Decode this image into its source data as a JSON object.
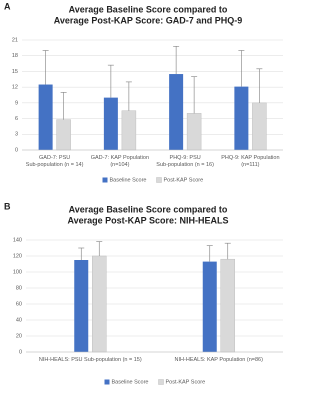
{
  "chart_data": [
    {
      "type": "bar",
      "panel_label": "A",
      "title": [
        "Average Baseline Score compared to",
        "Average Post-KAP Score: GAD-7 and PHQ-9"
      ],
      "categories": [
        "GAD-7: PSU Sub-population (n = 14)",
        "GAD-7: KAP Population (n=104)",
        "PHQ-9: PSU Sub-population (n = 16)",
        "PHQ-9: KAP Population (n=111)"
      ],
      "series": [
        {
          "name": "Baseline Score",
          "color": "#4472c4",
          "values": [
            12.5,
            10,
            14.5,
            12.1
          ],
          "errors": [
            6.5,
            6.2,
            5.3,
            6.9
          ]
        },
        {
          "name": "Post-KAP Score",
          "color": "#d9d9d9",
          "values": [
            5.8,
            7.5,
            7,
            9
          ],
          "errors": [
            5.2,
            5.5,
            7,
            6.5
          ]
        }
      ],
      "ylim": [
        0,
        21
      ],
      "yticks": [
        0,
        3,
        6,
        9,
        12,
        15,
        18,
        21
      ],
      "grid": true,
      "legend": "bottom"
    },
    {
      "type": "bar",
      "panel_label": "B",
      "title": [
        "Average Baseline Score compared to",
        "Average Post-KAP Score: NIH-HEALS"
      ],
      "categories": [
        "NIH-HEALS: PSU Sub-population (n = 15)",
        "NIH-HEALS: KAP Population (n=86)"
      ],
      "series": [
        {
          "name": "Baseline Score",
          "color": "#4472c4",
          "values": [
            115,
            113
          ],
          "errors": [
            15,
            20
          ]
        },
        {
          "name": "Post-KAP Score",
          "color": "#d9d9d9",
          "values": [
            120,
            116
          ],
          "errors": [
            18,
            20
          ]
        }
      ],
      "ylim": [
        0,
        140
      ],
      "yticks": [
        0,
        20,
        40,
        60,
        80,
        100,
        120,
        140
      ],
      "grid": true,
      "legend": "bottom"
    }
  ]
}
